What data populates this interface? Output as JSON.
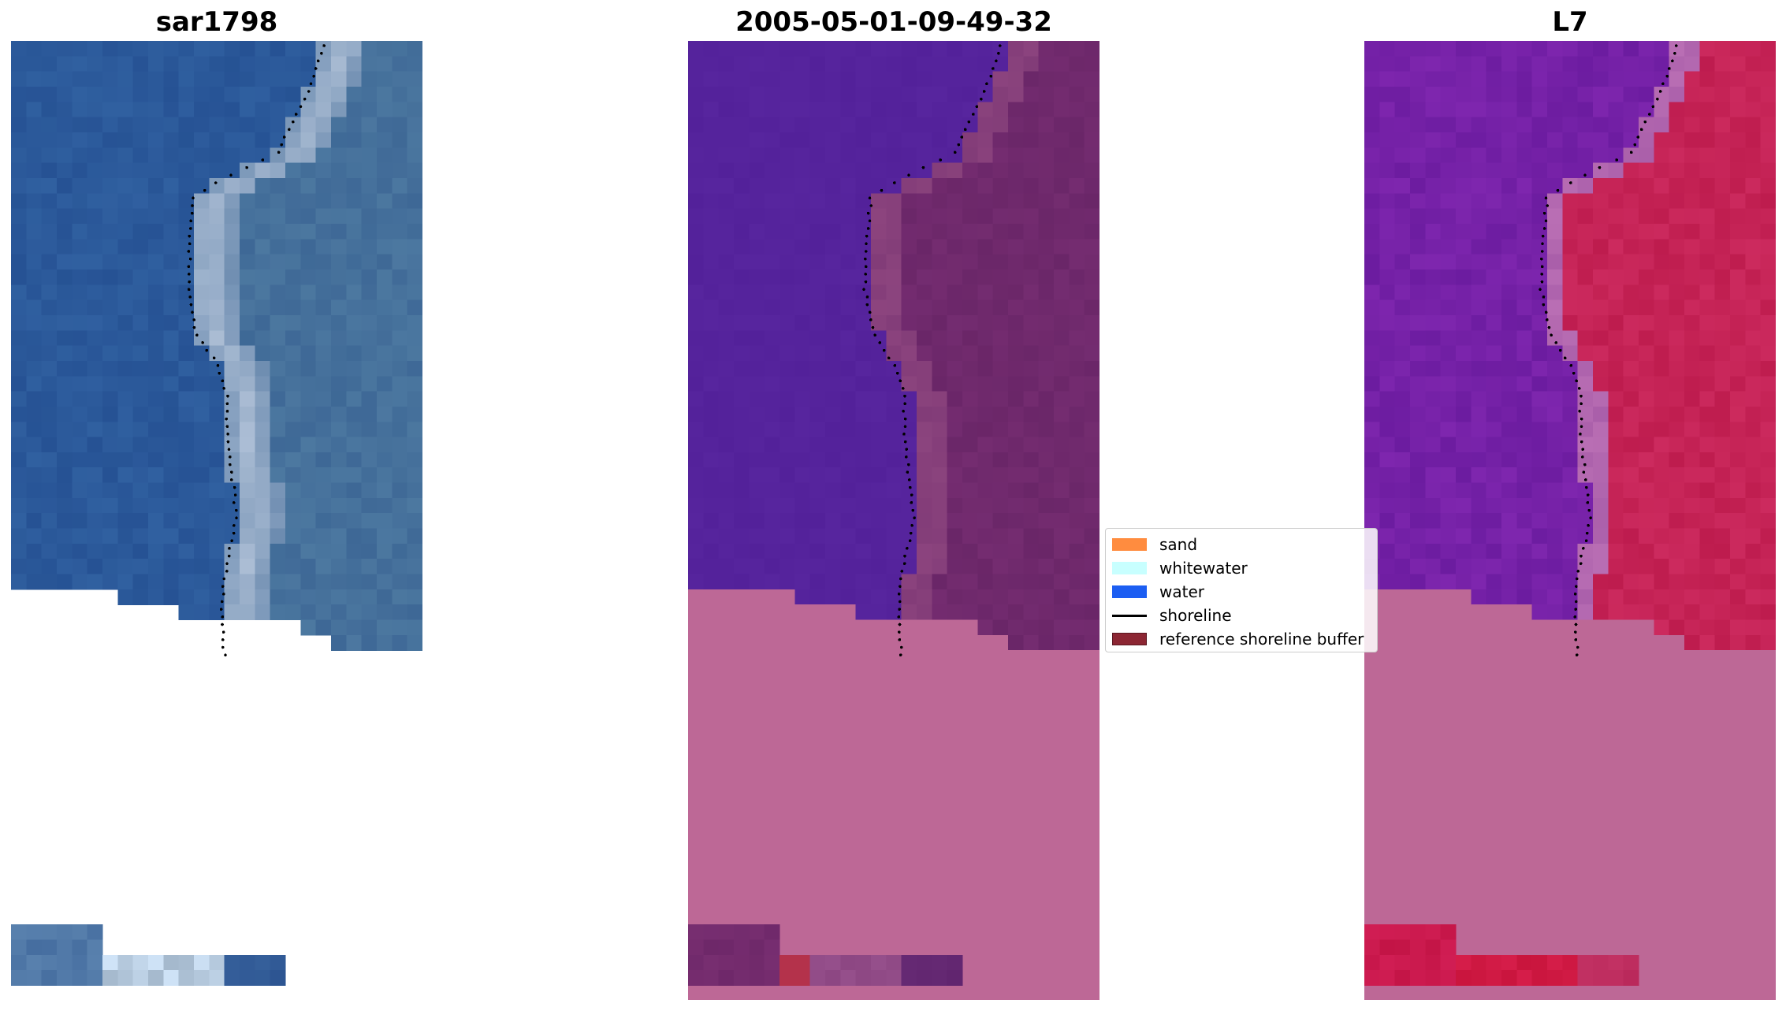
{
  "titles": {
    "left": "sar1798",
    "middle": "2005-05-01-09-49-32",
    "right": "L7"
  },
  "legend": {
    "items": [
      {
        "label": "sand",
        "color": "#ff8c3f",
        "kind": "patch"
      },
      {
        "label": "whitewater",
        "color": "#c8ffff",
        "kind": "patch"
      },
      {
        "label": "water",
        "color": "#1c5ef2",
        "kind": "patch"
      },
      {
        "label": "shoreline",
        "color": "#000000",
        "kind": "line"
      },
      {
        "label": "reference shoreline buffer",
        "color": "#8c2633",
        "kind": "patch"
      }
    ]
  },
  "colors": {
    "water_rgb": "#2a5a9a",
    "surf_rgb": "#90b0cc",
    "land_rgb": "#3f6a9c",
    "class_water": "#53219a",
    "class_land": "#6b2668",
    "class_nodata": "#bd6896",
    "ndwi_low": "#6a1aa0",
    "ndwi_high": "#c21a50",
    "shoreline": "#000000"
  }
}
